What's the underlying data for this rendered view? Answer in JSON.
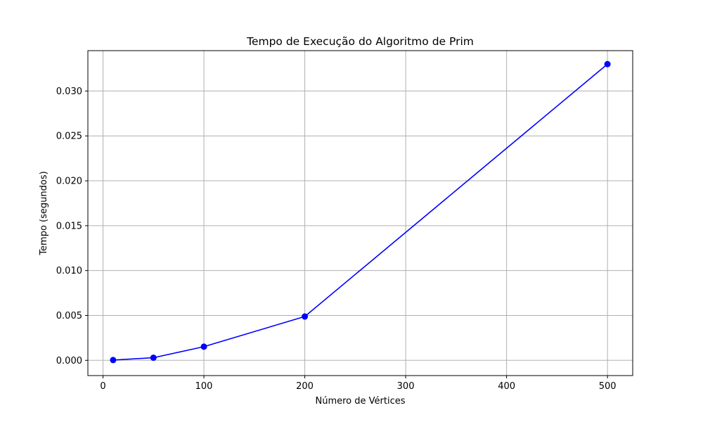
{
  "chart_data": {
    "type": "line",
    "title": "Tempo de Execução do Algoritmo de Prim",
    "xlabel": "Número de Vértices",
    "ylabel": "Tempo (segundos)",
    "xlim": [
      -15,
      525
    ],
    "ylim": [
      -0.0017,
      0.0345
    ],
    "x_ticks": [
      0,
      100,
      200,
      300,
      400,
      500
    ],
    "x_tick_labels": [
      "0",
      "100",
      "200",
      "300",
      "400",
      "500"
    ],
    "y_ticks": [
      0.0,
      0.005,
      0.01,
      0.015,
      0.02,
      0.025,
      0.03
    ],
    "y_tick_labels": [
      "0.000",
      "0.005",
      "0.010",
      "0.015",
      "0.020",
      "0.025",
      "0.030"
    ],
    "grid": true,
    "series": [
      {
        "name": "Prim",
        "color": "#0000ff",
        "marker": "circle",
        "x": [
          10,
          50,
          100,
          200,
          500
        ],
        "values": [
          3e-05,
          0.00029,
          0.00152,
          0.00488,
          0.033
        ]
      }
    ]
  }
}
